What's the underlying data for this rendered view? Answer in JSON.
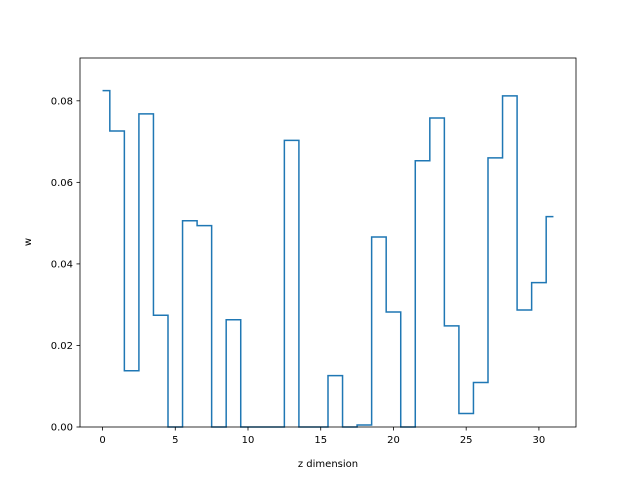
{
  "chart_data": {
    "type": "line",
    "drawstyle": "steps-mid",
    "title": "",
    "xlabel": "z dimension",
    "ylabel": "w",
    "xlim": [
      -1.55,
      32.55
    ],
    "ylim": [
      0.0,
      0.0905
    ],
    "xticks": [
      0,
      5,
      10,
      15,
      20,
      25,
      30
    ],
    "xtick_labels": [
      "0",
      "5",
      "10",
      "15",
      "20",
      "25",
      "30"
    ],
    "yticks": [
      0.0,
      0.02,
      0.04,
      0.06,
      0.08
    ],
    "ytick_labels": [
      "0.00",
      "0.02",
      "0.04",
      "0.06",
      "0.08"
    ],
    "grid": false,
    "line_color": "#1f77b4",
    "series": [
      {
        "x": [
          0,
          1,
          2,
          3,
          4,
          5,
          6,
          7,
          8,
          9,
          10,
          11,
          12,
          13,
          14,
          15,
          16,
          17,
          18,
          19,
          20,
          21,
          22,
          23,
          24,
          25,
          26,
          27,
          28,
          29,
          30,
          31
        ],
        "values": [
          0.0825,
          0.0726,
          0.0138,
          0.0768,
          0.0274,
          0.0,
          0.0506,
          0.0494,
          0.0,
          0.0263,
          0.0,
          0.0,
          0.0,
          0.0703,
          0.0,
          0.0,
          0.0126,
          0.0,
          0.0005,
          0.0466,
          0.0282,
          0.0,
          0.0653,
          0.0758,
          0.0248,
          0.0033,
          0.0109,
          0.066,
          0.0812,
          0.0287,
          0.0354,
          0.0516
        ]
      }
    ]
  }
}
